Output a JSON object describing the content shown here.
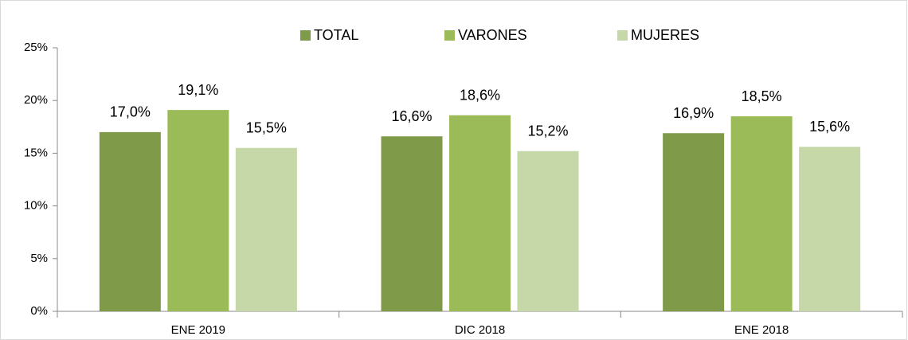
{
  "chart_data": {
    "type": "bar",
    "categories": [
      "ENE 2019",
      "DIC 2018",
      "ENE 2018"
    ],
    "series": [
      {
        "name": "TOTAL",
        "color": "#7f9a48",
        "values": [
          17.0,
          16.6,
          16.9
        ],
        "value_labels": [
          "17,0%",
          "16,6%",
          "16,9%"
        ]
      },
      {
        "name": "VARONES",
        "color": "#9bbb59",
        "values": [
          19.1,
          18.6,
          18.5
        ],
        "value_labels": [
          "19,1%",
          "18,6%",
          "18,5%"
        ]
      },
      {
        "name": "MUJERES",
        "color": "#c6d7a8",
        "values": [
          15.5,
          15.2,
          15.6
        ],
        "value_labels": [
          "15,5%",
          "15,2%",
          "15,6%"
        ]
      }
    ],
    "ylim": [
      0,
      25
    ],
    "yticks": [
      {
        "value": 0,
        "label": "0%"
      },
      {
        "value": 5,
        "label": "5%"
      },
      {
        "value": 10,
        "label": "10%"
      },
      {
        "value": 15,
        "label": "15%"
      },
      {
        "value": 20,
        "label": "20%"
      },
      {
        "value": 25,
        "label": "25%"
      }
    ],
    "legend": "top"
  }
}
